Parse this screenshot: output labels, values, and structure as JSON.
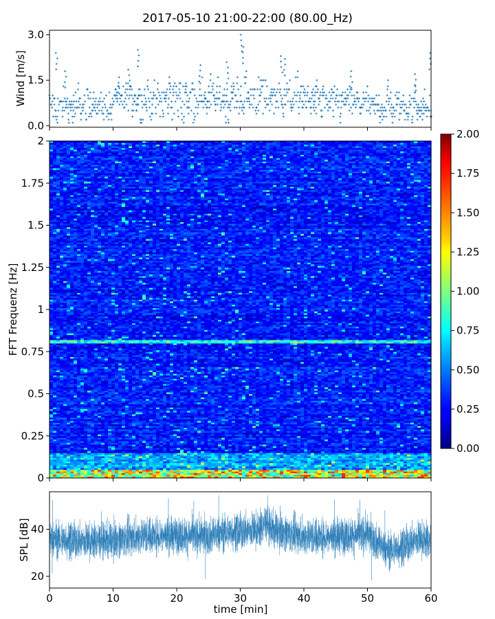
{
  "title": "2017-05-10 21:00-22:00 (80.00_Hz)",
  "chart_data": [
    {
      "type": "scatter",
      "panel": "wind",
      "ylabel": "Wind [m/s]",
      "ylim": [
        -0.05,
        3.15
      ],
      "yticks": [
        "0.0",
        "1.5",
        "3.0"
      ],
      "xlim": [
        0,
        60
      ],
      "marker_color": "#1f77b4",
      "sample_interval_min": 0.1,
      "segments": [
        {
          "t_start": 0,
          "t_end": 10,
          "base": 0.7,
          "spread": 0.45
        },
        {
          "t_start": 10,
          "t_end": 20,
          "base": 0.85,
          "spread": 0.5
        },
        {
          "t_start": 20,
          "t_end": 30,
          "base": 0.9,
          "spread": 0.5
        },
        {
          "t_start": 30,
          "t_end": 40,
          "base": 1.0,
          "spread": 0.55
        },
        {
          "t_start": 40,
          "t_end": 50,
          "base": 0.8,
          "spread": 0.45
        },
        {
          "t_start": 50,
          "t_end": 60,
          "base": 0.65,
          "spread": 0.45
        }
      ],
      "peaks": [
        {
          "t": 1.1,
          "v": 2.4
        },
        {
          "t": 2.5,
          "v": 1.8
        },
        {
          "t": 11.0,
          "v": 1.6
        },
        {
          "t": 12.5,
          "v": 1.85
        },
        {
          "t": 13.9,
          "v": 2.5
        },
        {
          "t": 23.6,
          "v": 2.0
        },
        {
          "t": 28.0,
          "v": 2.1
        },
        {
          "t": 30.2,
          "v": 3.0
        },
        {
          "t": 30.4,
          "v": 2.6
        },
        {
          "t": 36.5,
          "v": 2.3
        },
        {
          "t": 37.0,
          "v": 2.2
        },
        {
          "t": 47.5,
          "v": 1.8
        },
        {
          "t": 57.5,
          "v": 1.7
        },
        {
          "t": 59.8,
          "v": 2.4
        }
      ]
    },
    {
      "type": "heatmap",
      "panel": "spectrogram",
      "ylabel": "FFT Frequenz [Hz]",
      "ylim": [
        0,
        2
      ],
      "yticks": [
        "0",
        "0.25",
        "0.5",
        "0.75",
        "1",
        "1.25",
        "1.5",
        "1.75",
        "2"
      ],
      "xlim": [
        0,
        60
      ],
      "colormap": "jet",
      "colorbar": {
        "range": [
          0,
          2
        ],
        "ticks": [
          "0.00",
          "0.25",
          "0.50",
          "0.75",
          "1.00",
          "1.25",
          "1.50",
          "1.75",
          "2.00"
        ]
      },
      "typical_value": 0.3,
      "features": [
        {
          "label": "line near 0.8 Hz",
          "freq": 0.81,
          "value": 0.9,
          "t_start": 0,
          "t_end": 60
        },
        {
          "label": "low-frequency band",
          "freq_max": 0.05,
          "value": 1.3,
          "t_start": 0,
          "t_end": 60
        }
      ]
    },
    {
      "type": "line",
      "panel": "spl",
      "ylabel": "SPL [dB]",
      "xlabel": "time [min]",
      "ylim": [
        15,
        56
      ],
      "yticks": [
        "20",
        "40"
      ],
      "xlim": [
        0,
        60
      ],
      "xticks": [
        "0",
        "10",
        "20",
        "30",
        "40",
        "50",
        "60"
      ],
      "line_color": "#1f77b4",
      "sample_interval_min": 0.05,
      "trend": [
        {
          "t": 0,
          "v": 36
        },
        {
          "t": 5,
          "v": 35
        },
        {
          "t": 10,
          "v": 35.5
        },
        {
          "t": 15,
          "v": 37.5
        },
        {
          "t": 20,
          "v": 37.5
        },
        {
          "t": 25,
          "v": 37
        },
        {
          "t": 28,
          "v": 39
        },
        {
          "t": 30,
          "v": 39
        },
        {
          "t": 33,
          "v": 40
        },
        {
          "t": 34,
          "v": 43
        },
        {
          "t": 35,
          "v": 40
        },
        {
          "t": 40,
          "v": 37
        },
        {
          "t": 45,
          "v": 37
        },
        {
          "t": 50,
          "v": 38
        },
        {
          "t": 53,
          "v": 31
        },
        {
          "t": 55,
          "v": 32
        },
        {
          "t": 58,
          "v": 36
        },
        {
          "t": 60,
          "v": 35
        }
      ],
      "noise_amplitude": 5
    }
  ]
}
